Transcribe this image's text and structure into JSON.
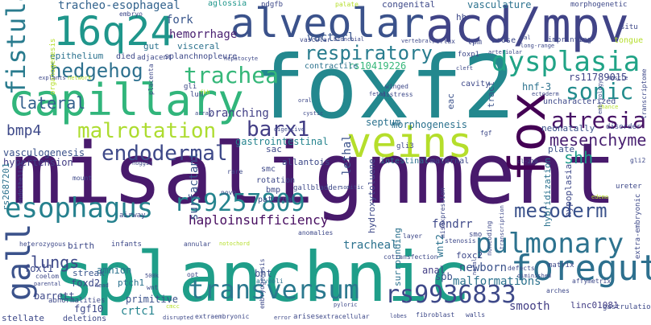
{
  "words": {
    "misalignment": "misalignment",
    "foxf2": "foxf2",
    "splanchnic": "splanchnic",
    "capillary": "capillary",
    "alveolar": "alveolar",
    "acd_mpv": "acd/mpv",
    "veins": "veins",
    "16q24": "16q24",
    "foregut": "foregut",
    "fox": "fox",
    "dysplasia": "dysplasia",
    "pulmonary": "pulmonary",
    "esophagus": "esophagus",
    "rs9257809": "rs9257809",
    "rs9936833": "rs9936833",
    "transversum": "transversum",
    "mesoderm": "mesoderm",
    "trachea": "trachea",
    "hedgehog": "hedgehog",
    "atresia": "atresia",
    "endodermal": "endodermal",
    "malrotation": "malrotation",
    "respiratory": "respiratory",
    "sonic": "sonic",
    "barx1": "barx1",
    "fistula": "fistula",
    "lateral": "lateral",
    "gall": "gall",
    "mesenchyme": "mesenchyme",
    "shh": "shh",
    "lungs": "lungs",
    "haploinsufficiency": "haploinsufficiency",
    "bmp4": "bmp4",
    "tracheo_esophageal": "tracheo-esophageal",
    "vacterl": "vacterl",
    "fork": "fork",
    "hemorrhage": "hemorrhage",
    "branching": "branching",
    "gastrointestinal": "gastrointestinal",
    "vasculogenesis": "vasculogenesis",
    "hypertension": "hypertension",
    "surfactant": "surfactant",
    "newborn": "newborn",
    "malformations": "malformations",
    "tracheal": "tracheal",
    "smooth": "smooth",
    "crtc1": "crtc1",
    "primitive": "primitive",
    "fgf10": "fgf10",
    "barrett": "barrett",
    "amnion": "amnion",
    "fendrr": "fendrr",
    "lethal": "lethal",
    "septum": "septum",
    "morphogenesis": "morphogenesis",
    "rs10419226": "rs10419226",
    "rs11789015": "rs11789015",
    "hnf_3": "hnf-3",
    "uncharacterized": "uncharacterized",
    "neonatally": "neonatally",
    "plate": "plate",
    "foxl1": "foxl1",
    "foxd2": "foxd2",
    "foxc2": "foxc2",
    "ptch1": "ptch1",
    "anal": "anal",
    "wnt2": "wnt2",
    "spb": "spb",
    "bht": "bht",
    "linc01081": "linc01081",
    "streak": "streak",
    "allantois": "allantois",
    "sac": "sac",
    "epithelium": "epithelium",
    "vasculature": "vasculature",
    "congenital": "congenital",
    "aglossia": "aglossia",
    "pdgfb": "pdgfb",
    "hh": "hh",
    "gut": "gut",
    "visceral": "visceral",
    "lpm": "lpm",
    "arose": "arose",
    "contractile": "contractile",
    "cavity": "cavity",
    "lun": "lun",
    "gli": "gli",
    "eac": "eac",
    "tract": "tract",
    "intestinal": "intestinal",
    "maternal": "maternal",
    "smc": "smc",
    "gli3": "gli3",
    "rotation": "rotation",
    "bmp": "bmp",
    "paternal": "paternal",
    "hydroxytoluene": "hydroxytoluene",
    "hybridization": "hybridization",
    "hypoplasia": "hypoplasia",
    "splanchnopleure": "splanchnopleure",
    "died": "died",
    "adjacent": "adjacent",
    "foxp1": "foxp1",
    "birth": "birth",
    "infants": "infants",
    "airway": "airway",
    "surrounding": "surrounding",
    "deletions": "deletions",
    "stellate": "stellate",
    "abnormalities": "abnormalities",
    "rs2687201": "rs2687201",
    "tongue": "tongue",
    "morphogenetic": "morphogenetic",
    "embryo": "embryo",
    "palate": "palate",
    "situ": "situ",
    "reflux": "reflux",
    "imprinting": "imprinting",
    "long_range": "long-range",
    "vascular": "vascular",
    "bronchial": "bronchial",
    "vertebral": "vertebral",
    "hepatocyte": "hepatocyte",
    "organogenesis": "organogenesis",
    "explants": "explants",
    "network": "network",
    "placenta": "placenta",
    "oral": "oral",
    "fetal": "fetal",
    "distress": "distress",
    "winged": "winged",
    "cystic": "cystic",
    "array": "array",
    "noggin": "noggin",
    "mount": "mount",
    "rare": "rare",
    "novo": "novo",
    "annular": "annular",
    "notochord": "notochord",
    "heterozygous": "heterozygous",
    "endothelial": "endothelial",
    "coelom": "coelom",
    "parental": "parental",
    "head": "head",
    "opt": "opt",
    "500k": "500k",
    "wnt": "wnt",
    "alveoli": "alveoli",
    "pyloric": "pyloric",
    "cmcc": "cmcc",
    "disrupted": "disrupted",
    "extraembryonic": "extraembryonic",
    "error": "error",
    "arises": "arises",
    "extracellular": "extracellular",
    "lobes": "lobes",
    "fibroblast": "fibroblast",
    "walls": "walls",
    "gastrulation": "gastrulation",
    "affymetrix": "affymetrix",
    "arches": "arches",
    "matrix": "matrix",
    "defects": "defects",
    "diminished": "diminished",
    "transcription": "transcription",
    "somitic": "somitic",
    "anomalies": "anomalies",
    "gallbladder": "gallbladder",
    "misexpression": "misexpression",
    "stenosis": "stenosis",
    "noncoding": "noncoding",
    "cotransfection": "cotransfection",
    "layer": "layer",
    "ureter": "ureter",
    "gli2": "gli2",
    "edema": "edema",
    "extra_embryonic": "extra-embryonic",
    "transcriptome": "transcriptome",
    "embryology": "embryology",
    "muscle": "muscle",
    "chance": "chance",
    "disorder": "disorder",
    "ectoderm": "ectoderm",
    "arteriolar": "arteriolar",
    "cleft": "cleft",
    "fgf": "fgf",
    "pal": "pal",
    "fkh": "fkh",
    "digestive": "digestive",
    "nodal": "nodal",
    "cl_210": "cl-210",
    "embryogenesis": "embryogenesis",
    "smo": "smo"
  }
}
